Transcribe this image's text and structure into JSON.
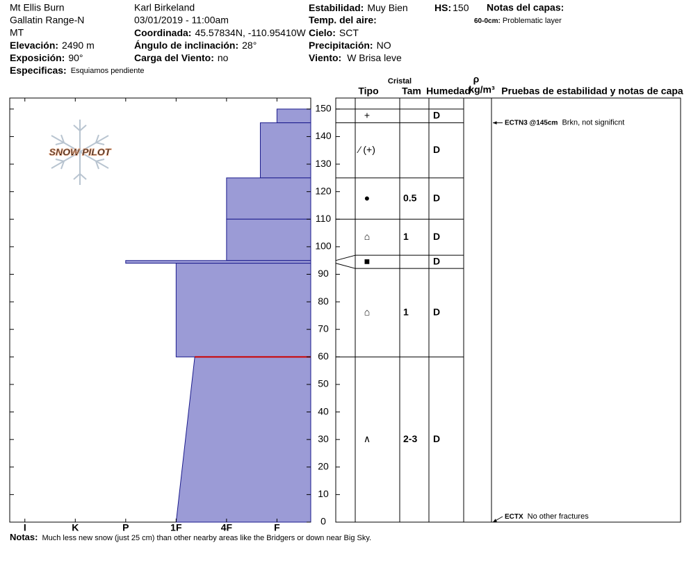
{
  "header": {
    "location": "Mt Ellis Burn",
    "range": "Gallatin Range-N",
    "state": "MT",
    "elevation": {
      "label": "Elevación:",
      "value": "2490 m"
    },
    "aspect": {
      "label": "Exposición:",
      "value": "90°"
    },
    "specifics": {
      "label": "Especificas:",
      "value": "Esquiamos pendiente"
    },
    "observer": "Karl Birkeland",
    "datetime": "03/01/2019 - 11:00am",
    "coords": {
      "label": "Coordinada:",
      "value": "45.57834N, -110.95410W"
    },
    "slope": {
      "label": "Ángulo de inclinación:",
      "value": "28°"
    },
    "wind_loading": {
      "label": "Carga del Viento:",
      "value": "no"
    },
    "stability": {
      "label": "Estabilidad:",
      "value": "Muy Bien"
    },
    "air_temp": {
      "label": "Temp. del aire:"
    },
    "sky": {
      "label": "Cielo:",
      "value": "SCT"
    },
    "precip": {
      "label": "Precipitación:",
      "value": "NO"
    },
    "wind": {
      "label": "Viento:",
      "value": "W Brisa leve"
    },
    "hs": {
      "label": "HS:",
      "value": 150
    },
    "layer_notes_title": "Notas del capas:",
    "layer_notes": [
      {
        "range": "60-0cm:",
        "note": "Problematic layer"
      }
    ]
  },
  "logo": "SNOW PILOT",
  "table_header": {
    "cristal": "Cristal",
    "tipo": "Tipo",
    "tam": "Tam",
    "humedad": "Humedad",
    "rho": "ρ",
    "density_unit": "kg/m³",
    "tests": "Pruebas de estabilidad y notas de capa"
  },
  "chart_data": {
    "type": "snow-profile",
    "ylim": [
      0,
      154
    ],
    "yticks": [
      0,
      10,
      20,
      30,
      40,
      50,
      60,
      70,
      80,
      90,
      100,
      110,
      120,
      130,
      140,
      150
    ],
    "xlim": [
      0.33,
      6.3
    ],
    "xticks": [
      {
        "value": 6,
        "label": "I"
      },
      {
        "value": 5,
        "label": "K"
      },
      {
        "value": 4,
        "label": "P"
      },
      {
        "value": 3,
        "label": "1F"
      },
      {
        "value": 2,
        "label": "4F"
      },
      {
        "value": 1,
        "label": "F"
      }
    ],
    "color": "#9b9bd6",
    "edge_color": "#1a1a8c",
    "problem_color": "#cc0000",
    "layers": [
      {
        "top": 150,
        "bottom": 145,
        "hardness_top": 1,
        "hardness_bottom": 1,
        "grain_type": "+",
        "moisture": "D"
      },
      {
        "top": 145,
        "bottom": 125,
        "hardness_top": 1.33,
        "hardness_bottom": 1.33,
        "grain_type": "⁄ (+)",
        "moisture": "D"
      },
      {
        "top": 125,
        "bottom": 110,
        "hardness_top": 2,
        "hardness_bottom": 2,
        "grain_type": "●",
        "grain_size": "0.5",
        "moisture": "D"
      },
      {
        "top": 110,
        "bottom": 95,
        "hardness_top": 2,
        "hardness_bottom": 2,
        "grain_type": "⌂",
        "grain_size": "1",
        "moisture": "D"
      },
      {
        "top": 95,
        "bottom": 94,
        "hardness_top": 4,
        "hardness_bottom": 4,
        "grain_type": "■",
        "moisture": "D"
      },
      {
        "top": 94,
        "bottom": 60,
        "hardness_top": 3,
        "hardness_bottom": 3,
        "grain_type": "⌂",
        "grain_size": "1",
        "moisture": "D"
      },
      {
        "top": 60,
        "bottom": 0,
        "hardness_top": 2.63,
        "hardness_bottom": 3,
        "grain_type": "∧",
        "grain_size": "2-3",
        "moisture": "D"
      }
    ],
    "problem_layer_top": 60,
    "tests": [
      {
        "height": 145,
        "code": "ECTN3 @145cm",
        "note": "Brkn, not significnt"
      },
      {
        "height": 0,
        "code": "ECTX",
        "note": "No other fractures"
      }
    ]
  },
  "notes": {
    "label": "Notas:",
    "text": "Much less new snow (just 25 cm) than other nearby areas like the Bridgers or down near Big Sky."
  }
}
